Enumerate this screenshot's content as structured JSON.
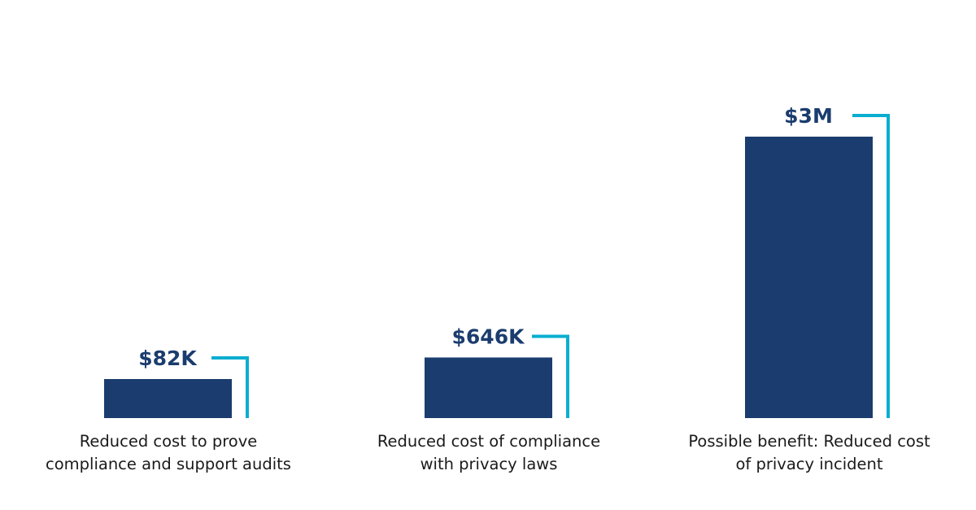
{
  "chart_data": {
    "type": "bar",
    "title": "",
    "xlabel": "",
    "ylabel": "",
    "categories": [
      [
        "Reduced cost to prove",
        "compliance and support audits"
      ],
      [
        "Reduced cost of compliance",
        "with privacy laws"
      ],
      [
        "Possible benefit: Reduced cost",
        "of privacy incident"
      ]
    ],
    "values": [
      82000,
      646000,
      3000000
    ],
    "value_labels": [
      "$82K",
      "$646K",
      "$3M"
    ],
    "grid": false,
    "legend": "none"
  },
  "colors": {
    "bar": "#1b3c6e",
    "accent_line": "#0aaed0",
    "value_text": "#1b3c6e",
    "category_text": "#1a1a1a",
    "background": "#ffffff"
  }
}
